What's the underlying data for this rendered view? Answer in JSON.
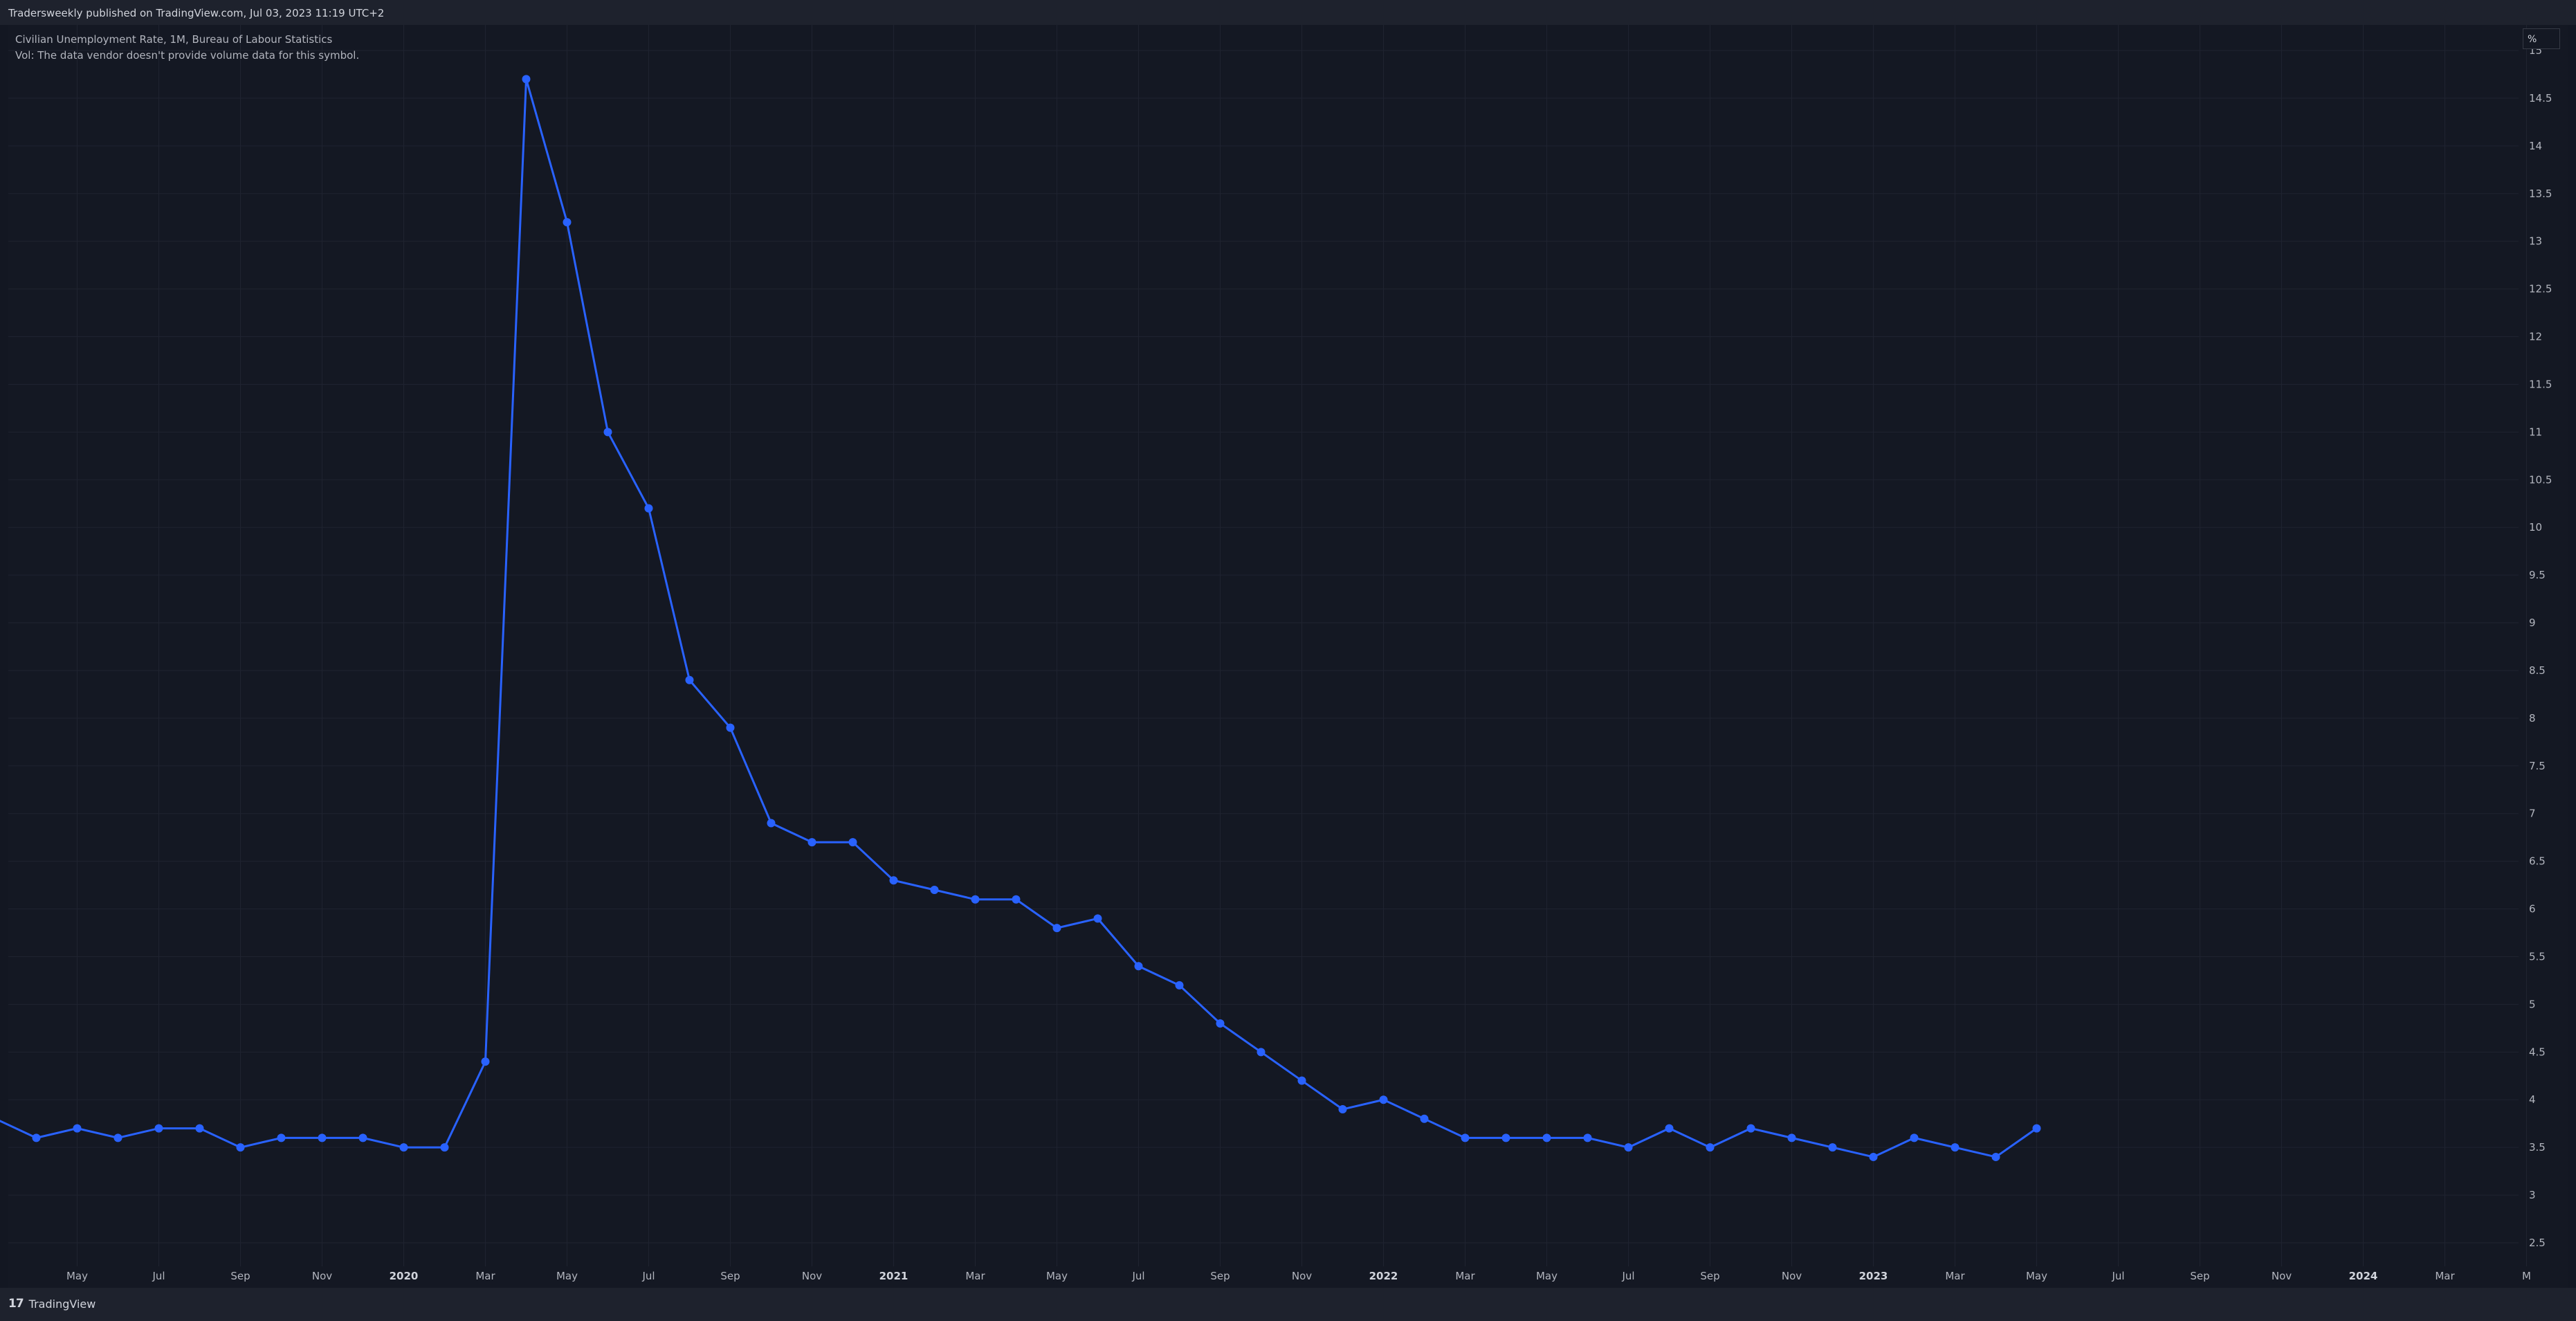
{
  "header": {
    "published": "Tradersweekly published on TradingView.com, Jul 03, 2023 11:19 UTC+2"
  },
  "legend": {
    "title": "Civilian Unemployment Rate, 1M, Bureau of Labour Statistics",
    "volume_note": "Vol: The data vendor doesn't provide volume data for this symbol."
  },
  "price_scale": {
    "unit": "%"
  },
  "footer": {
    "brand_logo": "17",
    "brand": "TradingView"
  },
  "colors": {
    "background": "#131722",
    "series": "#2962ff",
    "grid": "#1f2330"
  },
  "chart_data": {
    "type": "line",
    "series": [
      {
        "x": [
          "2019-03",
          "2019-04",
          "2019-05",
          "2019-06",
          "2019-07",
          "2019-08",
          "2019-09",
          "2019-10",
          "2019-11",
          "2019-12",
          "2020-01",
          "2020-02",
          "2020-03",
          "2020-04",
          "2020-05",
          "2020-06",
          "2020-07",
          "2020-08",
          "2020-09",
          "2020-10",
          "2020-11",
          "2020-12",
          "2021-01",
          "2021-02",
          "2021-03",
          "2021-04",
          "2021-05",
          "2021-06",
          "2021-07",
          "2021-08",
          "2021-09",
          "2021-10",
          "2021-11",
          "2021-12",
          "2022-01",
          "2022-02",
          "2022-03",
          "2022-04",
          "2022-05",
          "2022-06",
          "2022-07",
          "2022-08",
          "2022-09",
          "2022-10",
          "2022-11",
          "2022-12",
          "2023-01",
          "2023-02",
          "2023-03",
          "2023-04",
          "2023-05"
        ],
        "values": [
          3.8,
          3.6,
          3.7,
          3.6,
          3.7,
          3.7,
          3.5,
          3.6,
          3.6,
          3.6,
          3.5,
          3.5,
          4.4,
          14.7,
          13.2,
          11.0,
          10.2,
          8.4,
          7.9,
          6.9,
          6.7,
          6.7,
          6.3,
          6.2,
          6.1,
          6.1,
          5.8,
          5.9,
          5.4,
          5.2,
          4.8,
          4.5,
          4.2,
          3.9,
          4.0,
          3.8,
          3.6,
          3.6,
          3.6,
          3.6,
          3.5,
          3.7,
          3.5,
          3.7,
          3.6,
          3.5,
          3.4,
          3.6,
          3.5,
          3.4,
          3.7
        ]
      }
    ],
    "x_axis_ticks": [
      {
        "label": "May",
        "year": false
      },
      {
        "label": "Jul",
        "year": false
      },
      {
        "label": "Sep",
        "year": false
      },
      {
        "label": "Nov",
        "year": false
      },
      {
        "label": "2020",
        "year": true
      },
      {
        "label": "Mar",
        "year": false
      },
      {
        "label": "May",
        "year": false
      },
      {
        "label": "Jul",
        "year": false
      },
      {
        "label": "Sep",
        "year": false
      },
      {
        "label": "Nov",
        "year": false
      },
      {
        "label": "2021",
        "year": true
      },
      {
        "label": "Mar",
        "year": false
      },
      {
        "label": "May",
        "year": false
      },
      {
        "label": "Jul",
        "year": false
      },
      {
        "label": "Sep",
        "year": false
      },
      {
        "label": "Nov",
        "year": false
      },
      {
        "label": "2022",
        "year": true
      },
      {
        "label": "Mar",
        "year": false
      },
      {
        "label": "May",
        "year": false
      },
      {
        "label": "Jul",
        "year": false
      },
      {
        "label": "Sep",
        "year": false
      },
      {
        "label": "Nov",
        "year": false
      },
      {
        "label": "2023",
        "year": true
      },
      {
        "label": "Mar",
        "year": false
      },
      {
        "label": "May",
        "year": false
      },
      {
        "label": "Jul",
        "year": false
      },
      {
        "label": "Sep",
        "year": false
      },
      {
        "label": "Nov",
        "year": false
      },
      {
        "label": "2024",
        "year": true
      },
      {
        "label": "Mar",
        "year": false
      },
      {
        "label": "M",
        "year": false
      }
    ],
    "y_axis_ticks": [
      "15",
      "14.5",
      "14",
      "13.5",
      "13",
      "12.5",
      "12",
      "11.5",
      "11",
      "10.5",
      "10",
      "9.5",
      "9",
      "8.5",
      "8",
      "7.5",
      "7",
      "6.5",
      "6",
      "5.5",
      "5",
      "4.5",
      "4",
      "3.5",
      "3",
      "2.5"
    ],
    "ylim": [
      2.5,
      15
    ],
    "grid": true,
    "legend": "top-left"
  }
}
